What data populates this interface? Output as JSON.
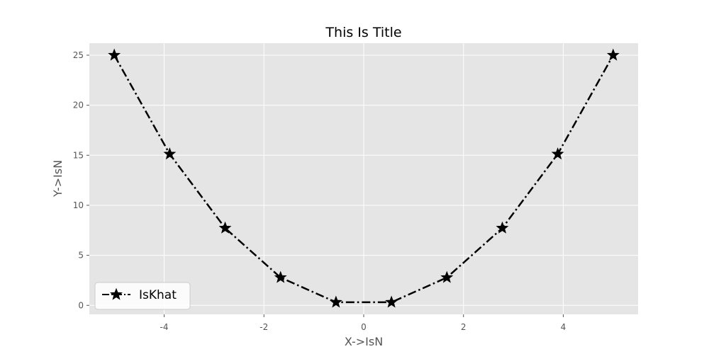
{
  "chart_data": {
    "type": "line",
    "title": "This Is Title",
    "xlabel": "X->IsN",
    "ylabel": "Y->IsN",
    "xlim": [
      -5.5,
      5.5
    ],
    "ylim": [
      -0.9,
      26.2
    ],
    "xticks": [
      -4,
      -2,
      0,
      2,
      4
    ],
    "yticks": [
      0,
      5,
      10,
      15,
      20,
      25
    ],
    "xtick_labels": [
      "-4",
      "-2",
      "0",
      "2",
      "4"
    ],
    "ytick_labels": [
      "0",
      "5",
      "10",
      "15",
      "20",
      "25"
    ],
    "grid": true,
    "legend_position": "lower-left",
    "series": [
      {
        "name": "IsKhat",
        "color": "#000000",
        "line_style": "dash-dot",
        "marker": "star",
        "x": [
          -5,
          -3.889,
          -2.778,
          -1.667,
          -0.556,
          0.556,
          1.667,
          2.778,
          3.889,
          5
        ],
        "y": [
          25,
          15.12,
          7.72,
          2.78,
          0.31,
          0.31,
          2.78,
          7.72,
          15.12,
          25
        ]
      }
    ]
  },
  "colors": {
    "plot_background": "#e5e5e5",
    "grid": "#ffffff",
    "page_background": "#ffffff"
  }
}
